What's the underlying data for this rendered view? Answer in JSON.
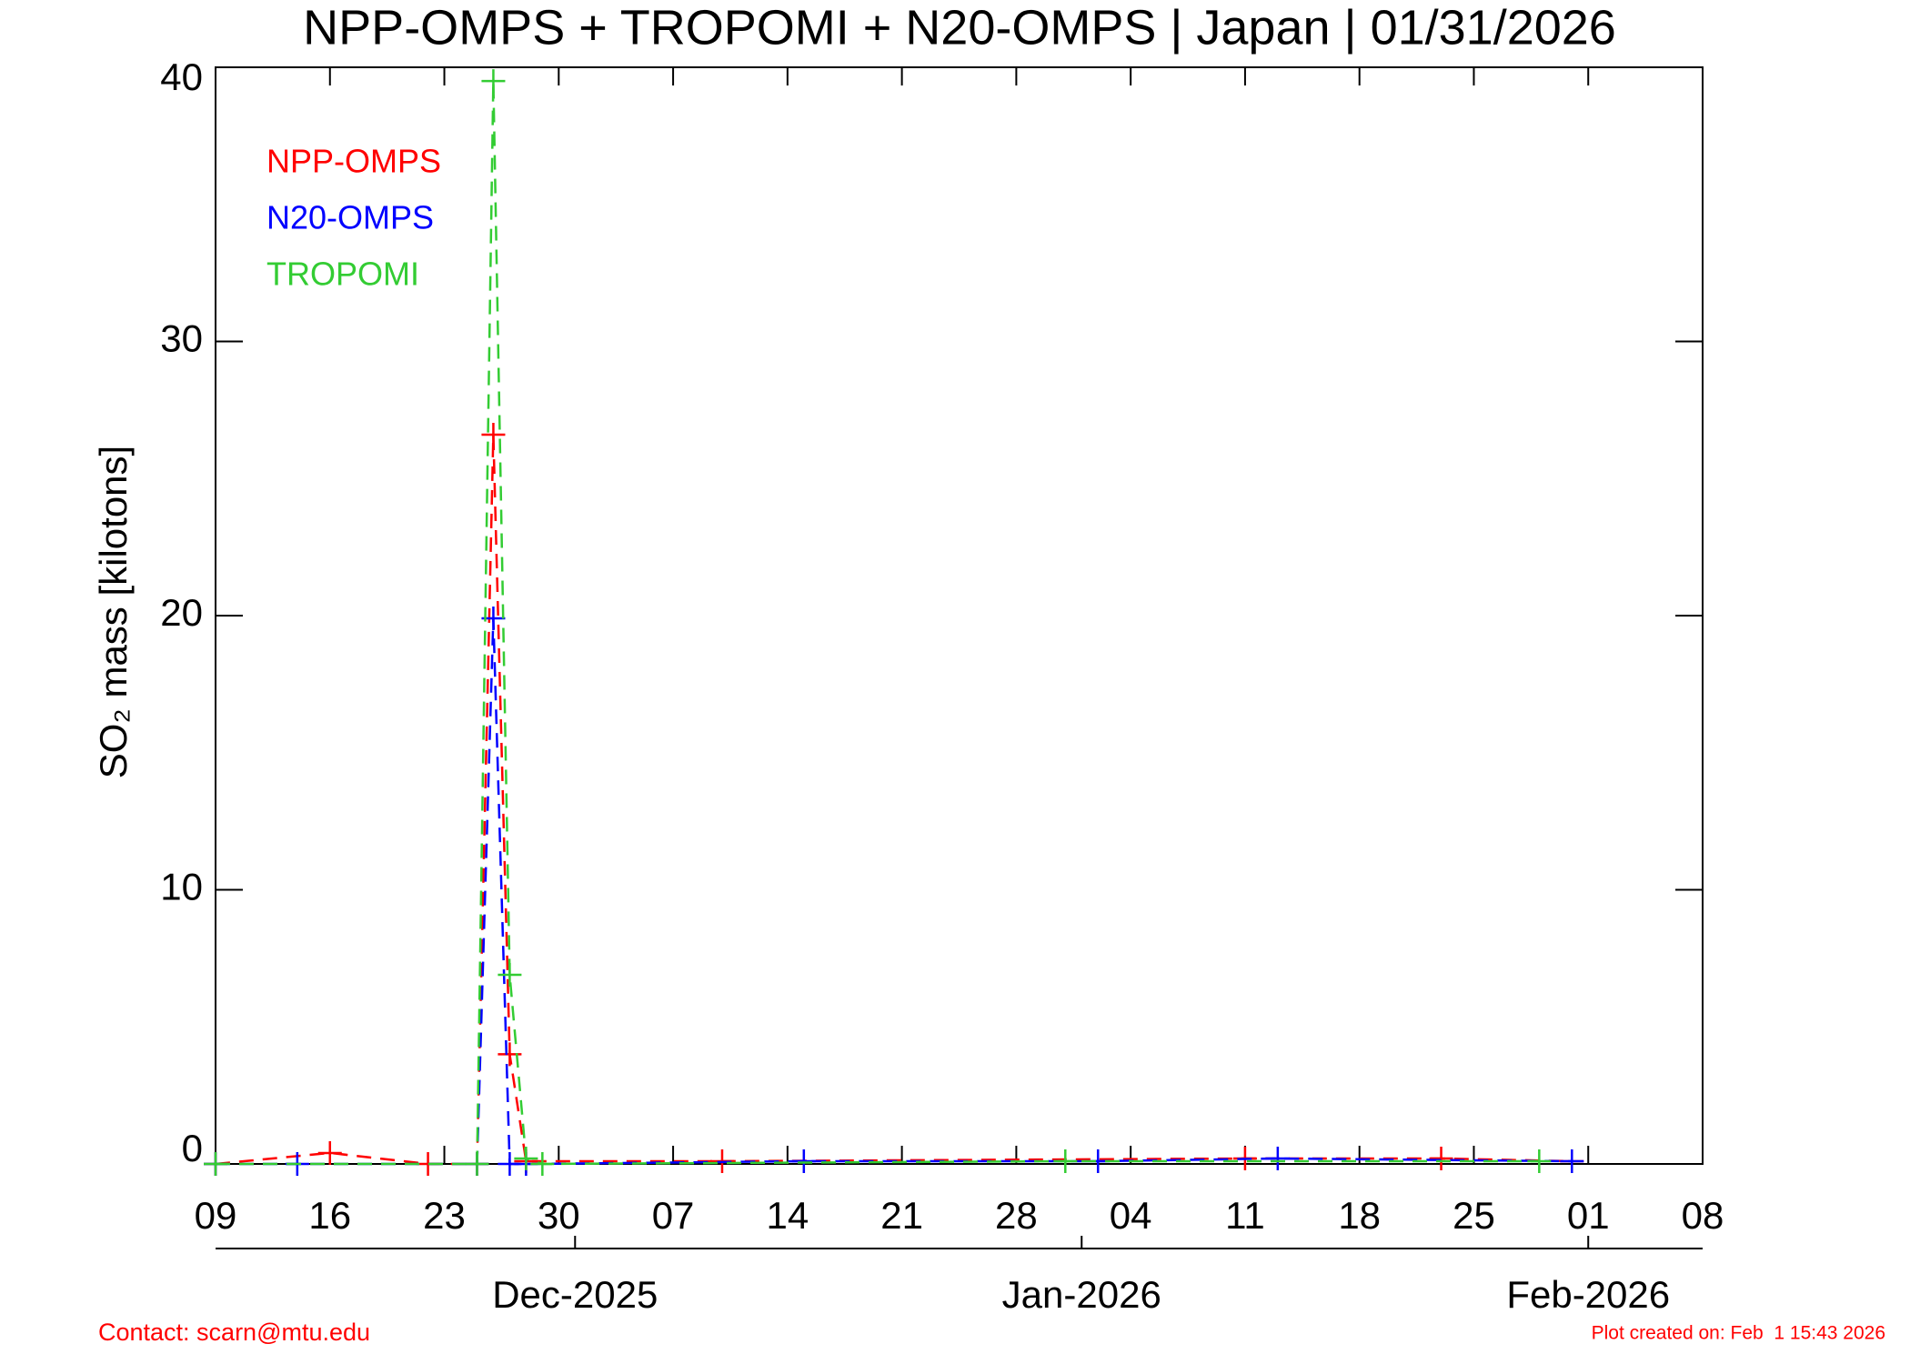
{
  "chart_data": {
    "type": "line",
    "title": "NPP-OMPS + TROPOMI + N20-OMPS | Japan | 01/31/2026",
    "y_label": "SO₂ mass [kilotons]",
    "xlim": [
      "2025-11-09",
      "2026-02-08"
    ],
    "xticks": [
      {
        "value": "2025-11-09",
        "label": "09"
      },
      {
        "value": "2025-11-16",
        "label": "16"
      },
      {
        "value": "2025-11-23",
        "label": "23"
      },
      {
        "value": "2025-11-30",
        "label": "30"
      },
      {
        "value": "2025-12-07",
        "label": "07"
      },
      {
        "value": "2025-12-14",
        "label": "14"
      },
      {
        "value": "2025-12-21",
        "label": "21"
      },
      {
        "value": "2025-12-28",
        "label": "28"
      },
      {
        "value": "2026-01-04",
        "label": "04"
      },
      {
        "value": "2026-01-11",
        "label": "11"
      },
      {
        "value": "2026-01-18",
        "label": "18"
      },
      {
        "value": "2026-01-25",
        "label": "25"
      },
      {
        "value": "2026-02-01",
        "label": "01"
      },
      {
        "value": "2026-02-08",
        "label": "08"
      }
    ],
    "month_ticks": [
      {
        "value": "2025-12-01",
        "label": "Dec-2025"
      },
      {
        "value": "2026-01-01",
        "label": "Jan-2026"
      },
      {
        "value": "2026-02-01",
        "label": "Feb-2026"
      }
    ],
    "ylim": [
      0,
      40
    ],
    "yticks": [
      0,
      10,
      20,
      30,
      40
    ],
    "series": [
      {
        "name": "NPP-OMPS",
        "color": "#ff0000",
        "x": [
          "2025-11-09",
          "2025-11-16",
          "2025-11-22",
          "2025-11-25",
          "2025-11-26",
          "2025-11-27",
          "2025-11-28",
          "2025-12-10",
          "2026-01-11",
          "2026-01-23",
          "2026-01-31"
        ],
        "values": [
          0,
          0.4,
          0,
          0,
          26.6,
          4.0,
          0.1,
          0.1,
          0.2,
          0.2,
          0.1
        ]
      },
      {
        "name": "N20-OMPS",
        "color": "#0000ff",
        "x": [
          "2025-11-09",
          "2025-11-14",
          "2025-11-25",
          "2025-11-26",
          "2025-11-27",
          "2025-11-28",
          "2025-12-15",
          "2026-01-02",
          "2026-01-13",
          "2026-01-31"
        ],
        "values": [
          0,
          0,
          0,
          19.9,
          0,
          0,
          0.1,
          0.1,
          0.2,
          0.1
        ]
      },
      {
        "name": "TROPOMI",
        "color": "#33cc33",
        "x": [
          "2025-11-09",
          "2025-11-25",
          "2025-11-26",
          "2025-11-27",
          "2025-11-28",
          "2025-11-29",
          "2025-12-31",
          "2026-01-29"
        ],
        "values": [
          0,
          0,
          39.5,
          6.9,
          0.2,
          0,
          0.1,
          0.1
        ]
      }
    ],
    "contact": "Contact: scarn@mtu.edu",
    "created": "Plot created on: Feb  1 15:43 2026"
  }
}
